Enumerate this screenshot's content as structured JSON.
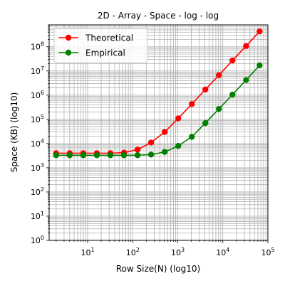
{
  "chart_data": {
    "type": "line",
    "title": "2D - Array - Space - log - log",
    "xlabel": "Row Size(N) (log10)",
    "ylabel": "Space (KB) (log10)",
    "xscale": "log",
    "yscale": "log",
    "xlim": [
      1.4,
      100000
    ],
    "ylim": [
      1,
      800000000
    ],
    "grid": true,
    "grid_minor": true,
    "legend_position": "upper-left",
    "x_tick_labels": [
      {
        "value": 10,
        "base": "10",
        "exp": "1"
      },
      {
        "value": 100,
        "base": "10",
        "exp": "2"
      },
      {
        "value": 1000,
        "base": "10",
        "exp": "3"
      },
      {
        "value": 10000,
        "base": "10",
        "exp": "4"
      },
      {
        "value": 100000,
        "base": "10",
        "exp": "5"
      }
    ],
    "y_tick_labels": [
      {
        "value": 1,
        "base": "10",
        "exp": "0"
      },
      {
        "value": 10,
        "base": "10",
        "exp": "1"
      },
      {
        "value": 100,
        "base": "10",
        "exp": "2"
      },
      {
        "value": 1000,
        "base": "10",
        "exp": "3"
      },
      {
        "value": 10000,
        "base": "10",
        "exp": "4"
      },
      {
        "value": 100000,
        "base": "10",
        "exp": "5"
      },
      {
        "value": 1000000,
        "base": "10",
        "exp": "6"
      },
      {
        "value": 10000000,
        "base": "10",
        "exp": "7"
      },
      {
        "value": 100000000,
        "base": "10",
        "exp": "8"
      }
    ],
    "x": [
      2,
      4,
      8,
      16,
      32,
      64,
      128,
      256,
      512,
      1024,
      2048,
      4096,
      8192,
      16384,
      32768,
      65536
    ],
    "series": [
      {
        "name": "Theoretical",
        "color": "#ff0000",
        "values": [
          4000,
          4000,
          4000,
          4000,
          4000,
          4200,
          5600,
          11000,
          30000,
          110000,
          430000,
          1700000,
          6700000,
          27000000,
          107000000,
          430000000
        ]
      },
      {
        "name": "Empirical",
        "color": "#008000",
        "values": [
          3300,
          3300,
          3300,
          3300,
          3300,
          3300,
          3300,
          3500,
          4500,
          8000,
          19000,
          70000,
          270000,
          1050000,
          4200000,
          17000000
        ]
      }
    ]
  }
}
